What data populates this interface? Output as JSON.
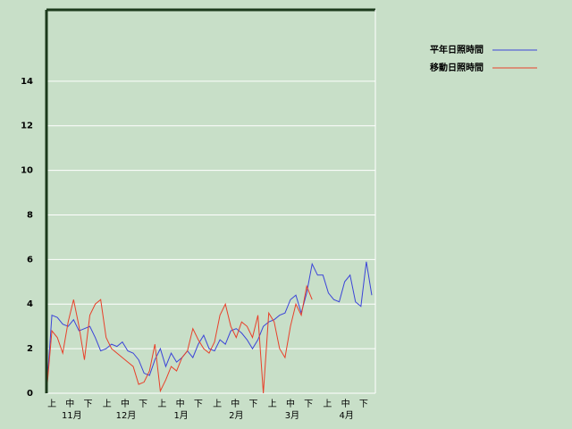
{
  "chart_data": {
    "type": "line",
    "x": [
      0,
      3,
      6,
      9,
      12,
      15,
      18,
      21,
      24,
      27,
      30,
      33,
      36,
      39,
      42,
      45,
      48,
      51,
      54,
      57,
      60,
      63,
      66,
      69,
      72,
      75,
      78,
      81,
      84,
      87,
      90,
      93,
      96,
      99,
      102,
      105,
      108,
      111,
      114,
      117,
      120,
      123,
      126,
      129,
      132,
      135,
      138,
      141,
      144,
      147,
      150,
      153,
      156,
      159,
      162,
      165,
      168,
      171,
      174,
      177,
      180
    ],
    "xlim": [
      0,
      182
    ],
    "xticks": [
      {
        "value": 3,
        "label": "上"
      },
      {
        "value": 13,
        "label": "中"
      },
      {
        "value": 23,
        "label": "下"
      },
      {
        "value": 33.5,
        "label": "上"
      },
      {
        "value": 43.5,
        "label": "中"
      },
      {
        "value": 53.5,
        "label": "下"
      },
      {
        "value": 64,
        "label": "上"
      },
      {
        "value": 74,
        "label": "中"
      },
      {
        "value": 84,
        "label": "下"
      },
      {
        "value": 94.5,
        "label": "上"
      },
      {
        "value": 104.5,
        "label": "中"
      },
      {
        "value": 114.5,
        "label": "下"
      },
      {
        "value": 125,
        "label": "上"
      },
      {
        "value": 135,
        "label": "中"
      },
      {
        "value": 145,
        "label": "下"
      },
      {
        "value": 155.5,
        "label": "上"
      },
      {
        "value": 165.5,
        "label": "中"
      },
      {
        "value": 175.5,
        "label": "下"
      }
    ],
    "month_labels": [
      {
        "value": 14,
        "label": "11月"
      },
      {
        "value": 44,
        "label": "12月"
      },
      {
        "value": 74.5,
        "label": "1月"
      },
      {
        "value": 105,
        "label": "2月"
      },
      {
        "value": 136,
        "label": "3月"
      },
      {
        "value": 166,
        "label": "4月"
      }
    ],
    "ylim": [
      0,
      17.2
    ],
    "yticks": [
      0,
      2,
      4,
      6,
      8,
      10,
      12,
      14
    ],
    "grid": true,
    "series": [
      {
        "name": "平年日照時間",
        "color": "#3b44d8",
        "values": [
          0,
          3.5,
          3.4,
          3.1,
          3.0,
          3.3,
          2.8,
          2.9,
          3.0,
          2.5,
          1.9,
          2.0,
          2.2,
          2.1,
          2.3,
          1.9,
          1.8,
          1.5,
          0.9,
          0.8,
          1.5,
          2.0,
          1.2,
          1.8,
          1.4,
          1.6,
          1.9,
          1.6,
          2.2,
          2.6,
          2.0,
          1.9,
          2.4,
          2.2,
          2.8,
          2.9,
          2.7,
          2.4,
          2.0,
          2.4,
          3.0,
          3.2,
          3.3,
          3.5,
          3.6,
          4.2,
          4.4,
          3.6,
          4.5,
          5.8,
          5.3,
          5.3,
          4.5,
          4.2,
          4.1,
          5.0,
          5.3,
          4.1,
          3.9,
          5.9,
          4.4
        ]
      },
      {
        "name": "移動日照時間",
        "color": "#e8402a",
        "values": [
          0,
          2.8,
          2.5,
          1.8,
          3.2,
          4.2,
          3.0,
          1.5,
          3.5,
          4.0,
          4.2,
          2.5,
          2.0,
          1.8,
          1.6,
          1.4,
          1.2,
          0.4,
          0.5,
          1.0,
          2.2,
          0.1,
          0.6,
          1.2,
          1.0,
          1.6,
          1.9,
          2.9,
          2.4,
          2.0,
          1.8,
          2.3,
          3.5,
          4.0,
          3.0,
          2.5,
          3.2,
          3.0,
          2.5,
          3.5,
          0,
          3.6,
          3.2,
          2.0,
          1.6,
          3.0,
          4.0,
          3.5,
          4.8,
          4.2,
          null,
          null,
          null,
          null,
          null,
          null,
          null,
          null,
          null,
          null,
          null
        ]
      }
    ]
  }
}
